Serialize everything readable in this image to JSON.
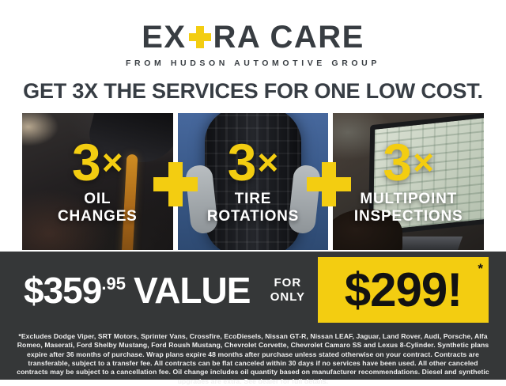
{
  "colors": {
    "yellow": "#F3CD11",
    "charcoal_text": "#383D42",
    "band_background": "#353738",
    "label_white": "#FFFFFF"
  },
  "logo": {
    "word_start": "EX",
    "word_end": "RA CARE",
    "plus_icon": "yellow-plus-cross",
    "tagline": "FROM HUDSON AUTOMOTIVE GROUP"
  },
  "headline": "GET 3X THE SERVICES FOR ONE LOW COST.",
  "panels": [
    {
      "multiplier_number": "3",
      "multiplier_symbol": "×",
      "label_line1": "OIL",
      "label_line2": "CHANGES",
      "photo": "oil-pour-photo"
    },
    {
      "multiplier_number": "3",
      "multiplier_symbol": "×",
      "label_line1": "TIRE",
      "label_line2": "ROTATIONS",
      "photo": "tire-hold-photo"
    },
    {
      "multiplier_number": "3",
      "multiplier_symbol": "×",
      "label_line1": "MULTIPOINT",
      "label_line2": "INSPECTIONS",
      "photo": "laptop-inspection-photo"
    }
  ],
  "separators": {
    "plus_icon": "yellow-plus-cross"
  },
  "offer": {
    "value_dollars": "$359",
    "value_cents": ".95",
    "value_word": "VALUE",
    "for_word": "FOR",
    "only_word": "ONLY",
    "sale_price": "$299!",
    "footnote_marker": "*"
  },
  "disclaimer": "*Excludes Dodge Viper, SRT Motors, Sprinter Vans, Crossfire, EcoDiesels, Nissan GT-R, Nissan LEAF, Jaguar, Land Rover, Audi, Porsche, Alfa Romeo, Maserati, Ford Shelby Mustang, Ford Roush Mustang, Chevrolet Corvette, Chevrolet Camaro SS and Lexus 8-Cylinder. Synthetic plans expire after 36 months of purchase. Wrap plans expire 48 months after purchase unless stated otherwise on your contract. Contracts are transferable, subject to a transfer fee. All contracts can be flat canceled within 30 days if no services have been used. All other canceled contracts may be subject to a cancellation fee. Oil change includes oil quantity based on manufacturer recommendations. Diesel and synthetic upgrades are extra. See dealer for full details."
}
